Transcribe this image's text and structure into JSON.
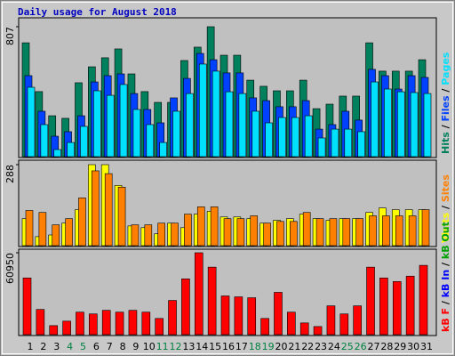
{
  "chart_data": [
    {
      "type": "bar",
      "title": "Daily usage for August 2018",
      "ylim": [
        0,
        807
      ],
      "yticks": [
        807
      ],
      "series": [
        {
          "name": "Hits",
          "color": "#00805c",
          "values": [
            707,
            404,
            254,
            238,
            459,
            558,
            614,
            669,
            514,
            404,
            337,
            337,
            597,
            680,
            807,
            630,
            630,
            475,
            437,
            409,
            409,
            475,
            298,
            326,
            376,
            376,
            707,
            531,
            531,
            531,
            602
          ]
        },
        {
          "name": "Files",
          "color": "#0040ff",
          "values": [
            503,
            282,
            127,
            155,
            254,
            464,
            503,
            514,
            392,
            293,
            210,
            365,
            486,
            641,
            602,
            520,
            520,
            365,
            348,
            310,
            310,
            348,
            171,
            199,
            282,
            227,
            542,
            503,
            420,
            503,
            492
          ]
        },
        {
          "name": "Pages",
          "color": "#00e0ff",
          "values": [
            431,
            199,
            44,
            88,
            188,
            409,
            381,
            448,
            293,
            199,
            88,
            282,
            392,
            575,
            531,
            403,
            392,
            282,
            210,
            243,
            243,
            254,
            116,
            171,
            171,
            155,
            464,
            420,
            403,
            398,
            392
          ]
        }
      ]
    },
    {
      "type": "bar",
      "ylim": [
        0,
        288
      ],
      "yticks": [
        288
      ],
      "series": [
        {
          "name": "Visits",
          "color": "#ffff00",
          "values": [
            96,
            32,
            38,
            80,
            128,
            288,
            288,
            214,
            70,
            64,
            42,
            80,
            64,
            112,
            122,
            102,
            102,
            96,
            80,
            90,
            96,
            112,
            96,
            90,
            96,
            96,
            118,
            134,
            128,
            128,
            128
          ]
        },
        {
          "name": "Sites",
          "color": "#ff8000",
          "values": [
            125,
            118,
            74,
            96,
            170,
            266,
            256,
            208,
            74,
            74,
            80,
            80,
            112,
            138,
            138,
            96,
            96,
            106,
            80,
            86,
            86,
            118,
            96,
            96,
            96,
            96,
            106,
            106,
            106,
            106,
            128
          ]
        }
      ]
    },
    {
      "type": "bar",
      "ylim": [
        0,
        60950
      ],
      "yticks": [
        60950
      ],
      "categories": [
        "1",
        "2",
        "3",
        "4",
        "5",
        "6",
        "7",
        "8",
        "9",
        "10",
        "11",
        "12",
        "13",
        "14",
        "15",
        "16",
        "17",
        "18",
        "19",
        "20",
        "21",
        "22",
        "23",
        "24",
        "25",
        "26",
        "27",
        "28",
        "29",
        "30",
        "31"
      ],
      "category_colors": [
        "#000000",
        "#000000",
        "#000000",
        "#008040",
        "#008040",
        "#000000",
        "#000000",
        "#000000",
        "#000000",
        "#000000",
        "#008040",
        "#008040",
        "#000000",
        "#000000",
        "#000000",
        "#000000",
        "#000000",
        "#008040",
        "#008040",
        "#000000",
        "#000000",
        "#000000",
        "#000000",
        "#000000",
        "#008040",
        "#008040",
        "#000000",
        "#000000",
        "#000000",
        "#000000",
        "#000000"
      ],
      "series": [
        {
          "name": "kB F",
          "color": "#ff0000",
          "values": [
            42210,
            18760,
            6700,
            10050,
            16750,
            15410,
            18090,
            16750,
            18090,
            16750,
            12060,
            25460,
            41540,
            60950,
            50250,
            28810,
            28140,
            27470,
            12060,
            31490,
            16750,
            8710,
            6030,
            21440,
            15410,
            21440,
            50250,
            42210,
            39530,
            43550,
            51590
          ]
        },
        {
          "name": "kB In",
          "color": "#0000ff"
        },
        {
          "name": "kB Out",
          "color": "#00a000"
        }
      ]
    }
  ]
}
